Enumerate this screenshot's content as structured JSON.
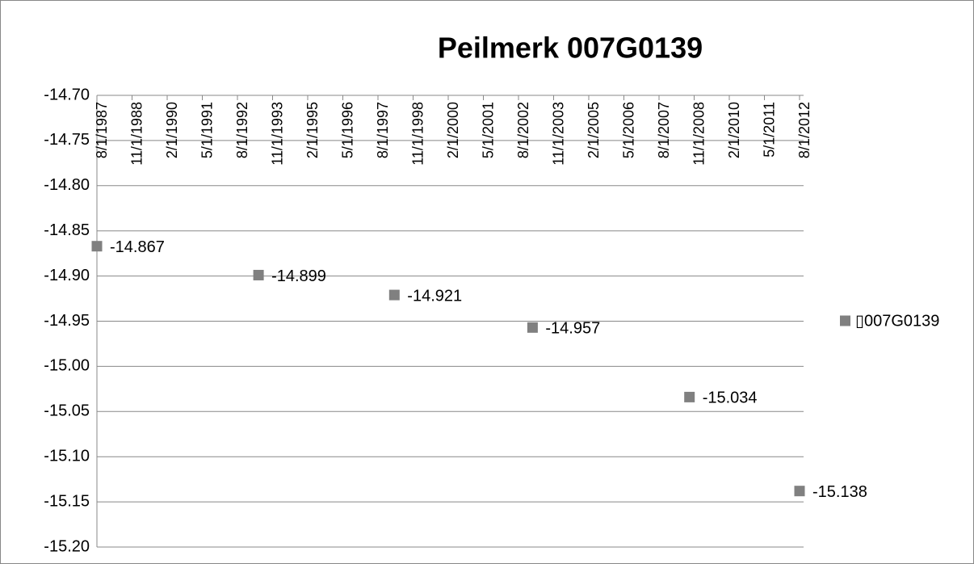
{
  "chart_data": {
    "type": "scatter",
    "title": "Peilmerk 007G0139",
    "series": [
      {
        "name": "▯007G0139",
        "color": "#808080",
        "x": [
          "8/1/1987",
          "5/1/1993",
          "3/1/1998",
          "2/1/2003",
          "9/1/2008",
          "8/1/2012"
        ],
        "values": [
          -14.867,
          -14.899,
          -14.921,
          -14.957,
          -15.034,
          -15.138
        ]
      }
    ],
    "xlim": [
      "8/1/1987",
      "8/1/2012"
    ],
    "xticks": [
      "8/1/1987",
      "11/1/1988",
      "2/1/1990",
      "5/1/1991",
      "8/1/1992",
      "11/1/1993",
      "2/1/1995",
      "5/1/1996",
      "8/1/1997",
      "11/1/1998",
      "2/1/2000",
      "5/1/2001",
      "8/1/2002",
      "11/1/2003",
      "2/1/2005",
      "5/1/2006",
      "8/1/2007",
      "11/1/2008",
      "2/1/2010",
      "5/1/2011",
      "8/1/2012"
    ],
    "ylim": [
      -15.2,
      -14.7
    ],
    "yticks": [
      {
        "value": -14.7,
        "label": "-14.70"
      },
      {
        "value": -14.75,
        "label": "-14.75"
      },
      {
        "value": -14.8,
        "label": "-14.80"
      },
      {
        "value": -14.85,
        "label": "-14.85"
      },
      {
        "value": -14.9,
        "label": "-14.90"
      },
      {
        "value": -14.95,
        "label": "-14.95"
      },
      {
        "value": -15.0,
        "label": "-15.00"
      },
      {
        "value": -15.05,
        "label": "-15.05"
      },
      {
        "value": -15.1,
        "label": "-15.10"
      },
      {
        "value": -15.15,
        "label": "-15.15"
      },
      {
        "value": -15.2,
        "label": "-15.20"
      }
    ],
    "grid": true,
    "legend": "right"
  }
}
